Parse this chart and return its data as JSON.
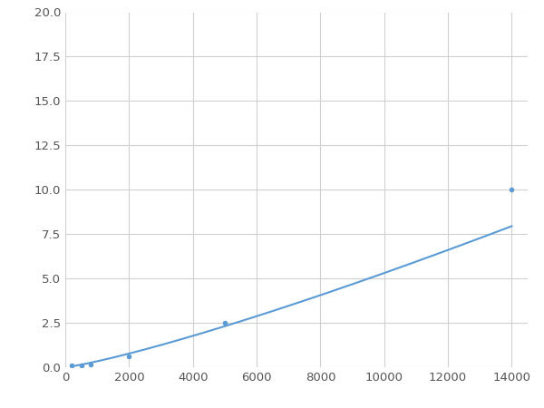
{
  "x_points": [
    200,
    500,
    800,
    2000,
    5000,
    14000
  ],
  "y_points": [
    0.08,
    0.12,
    0.17,
    0.62,
    2.5,
    10.0
  ],
  "line_color": "#5b9bd5",
  "marker_color": "#5b9bd5",
  "marker_size": 4,
  "line_width": 1.5,
  "xlim": [
    0,
    14500
  ],
  "ylim": [
    0,
    20.0
  ],
  "xticks": [
    0,
    2000,
    4000,
    6000,
    8000,
    10000,
    12000,
    14000
  ],
  "yticks": [
    0.0,
    2.5,
    5.0,
    7.5,
    10.0,
    12.5,
    15.0,
    17.5,
    20.0
  ],
  "grid_color": "#d0d0d0",
  "background_color": "#ffffff",
  "figure_background": "#ffffff",
  "tick_fontsize": 9.5
}
